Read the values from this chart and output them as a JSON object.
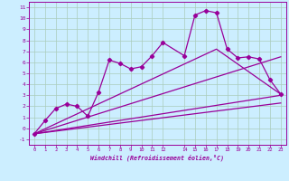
{
  "xlabel": "Windchill (Refroidissement éolien,°C)",
  "bg_color": "#cceeff",
  "grid_color": "#aaccbb",
  "line_color": "#990099",
  "xlim": [
    -0.5,
    23.5
  ],
  "ylim": [
    -1.5,
    11.5
  ],
  "xticks": [
    0,
    1,
    2,
    3,
    4,
    5,
    6,
    7,
    8,
    9,
    10,
    11,
    12,
    14,
    15,
    16,
    17,
    18,
    19,
    20,
    21,
    22,
    23
  ],
  "yticks": [
    -1,
    0,
    1,
    2,
    3,
    4,
    5,
    6,
    7,
    8,
    9,
    10,
    11
  ],
  "line1_x": [
    0,
    1,
    2,
    3,
    4,
    5,
    6,
    7,
    8,
    9,
    10,
    11,
    12,
    14,
    15,
    16,
    17,
    18,
    19,
    20,
    21,
    22,
    23
  ],
  "line1_y": [
    -0.5,
    0.7,
    1.8,
    2.2,
    2.0,
    1.1,
    3.3,
    6.2,
    5.9,
    5.4,
    5.6,
    6.6,
    7.8,
    6.6,
    10.3,
    10.7,
    10.5,
    7.2,
    6.4,
    6.5,
    6.3,
    4.4,
    3.1
  ],
  "line2_x": [
    0,
    17,
    23
  ],
  "line2_y": [
    -0.5,
    7.2,
    3.1
  ],
  "line3_x": [
    0,
    23
  ],
  "line3_y": [
    -0.5,
    6.5
  ],
  "line4_x": [
    0,
    23
  ],
  "line4_y": [
    -0.5,
    3.0
  ],
  "line5_x": [
    0,
    23
  ],
  "line5_y": [
    -0.5,
    2.3
  ],
  "marker": "D",
  "markersize": 2.2,
  "linewidth": 0.9
}
